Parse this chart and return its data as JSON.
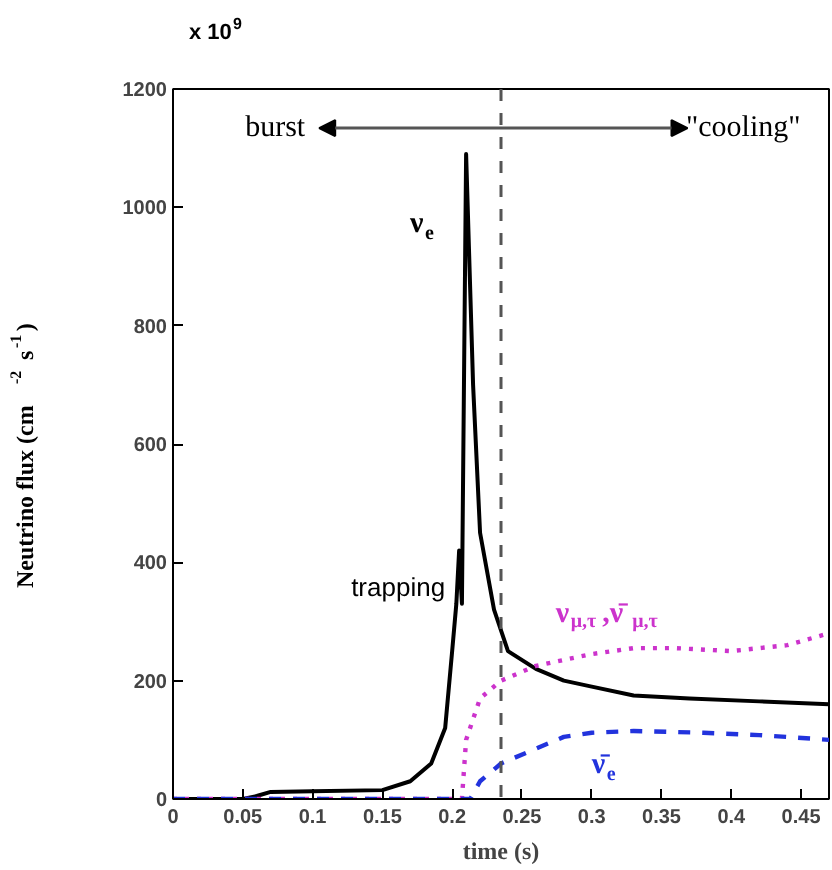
{
  "chart_data": {
    "type": "line",
    "xlabel": "time (s)",
    "ylabel": "Neutrino flux (cm$^{-2}$ s$^{-1}$)",
    "xlim": [
      0,
      0.47
    ],
    "ylim": [
      0,
      1200
    ],
    "xticks": [
      0,
      0.05,
      0.1,
      0.15,
      0.2,
      0.25,
      0.3,
      0.35,
      0.4,
      0.45
    ],
    "yticks": [
      0,
      200,
      400,
      600,
      800,
      1000,
      1200
    ],
    "grid": false,
    "marker": "none",
    "series": [
      {
        "name": "ν$_{e}$",
        "color": "#000000",
        "line_style": "solid",
        "x": [
          0,
          0.05,
          0.06,
          0.07,
          0.1,
          0.15,
          0.17,
          0.185,
          0.195,
          0.2,
          0.203,
          0.205,
          0.207,
          0.21,
          0.215,
          0.22,
          0.23,
          0.24,
          0.26,
          0.28,
          0.3,
          0.33,
          0.37,
          0.42,
          0.47
        ],
        "values": [
          0,
          0,
          5,
          12,
          13,
          15,
          30,
          60,
          120,
          250,
          330,
          420,
          330,
          1090,
          700,
          450,
          320,
          250,
          220,
          200,
          190,
          175,
          170,
          165,
          160
        ]
      },
      {
        "name": "ν$_{μ,τ}$,ν̄$_{μ,τ}$",
        "color": "#cc33cc",
        "line_style": "dotted",
        "x": [
          0,
          0.207,
          0.21,
          0.22,
          0.235,
          0.26,
          0.3,
          0.33,
          0.36,
          0.4,
          0.44,
          0.47
        ],
        "values": [
          0,
          0,
          100,
          170,
          200,
          225,
          245,
          255,
          255,
          250,
          260,
          280
        ]
      },
      {
        "name": "ν̄$_{e}$",
        "color": "#2233dd",
        "line_style": "dashed",
        "x": [
          0,
          0.213,
          0.22,
          0.235,
          0.26,
          0.28,
          0.3,
          0.33,
          0.38,
          0.42,
          0.47
        ],
        "values": [
          0,
          0,
          30,
          60,
          85,
          105,
          112,
          115,
          112,
          108,
          100
        ]
      }
    ],
    "ref_lines": [
      {
        "axis": "x",
        "value": 0.235,
        "color": "#555555",
        "line_style": "dashed"
      }
    ],
    "annotations": [
      "x 10$^{9}$",
      "burst",
      "\"cooling\"",
      {
        "text": "trapping",
        "x": 0.205,
        "y": 420
      }
    ]
  }
}
